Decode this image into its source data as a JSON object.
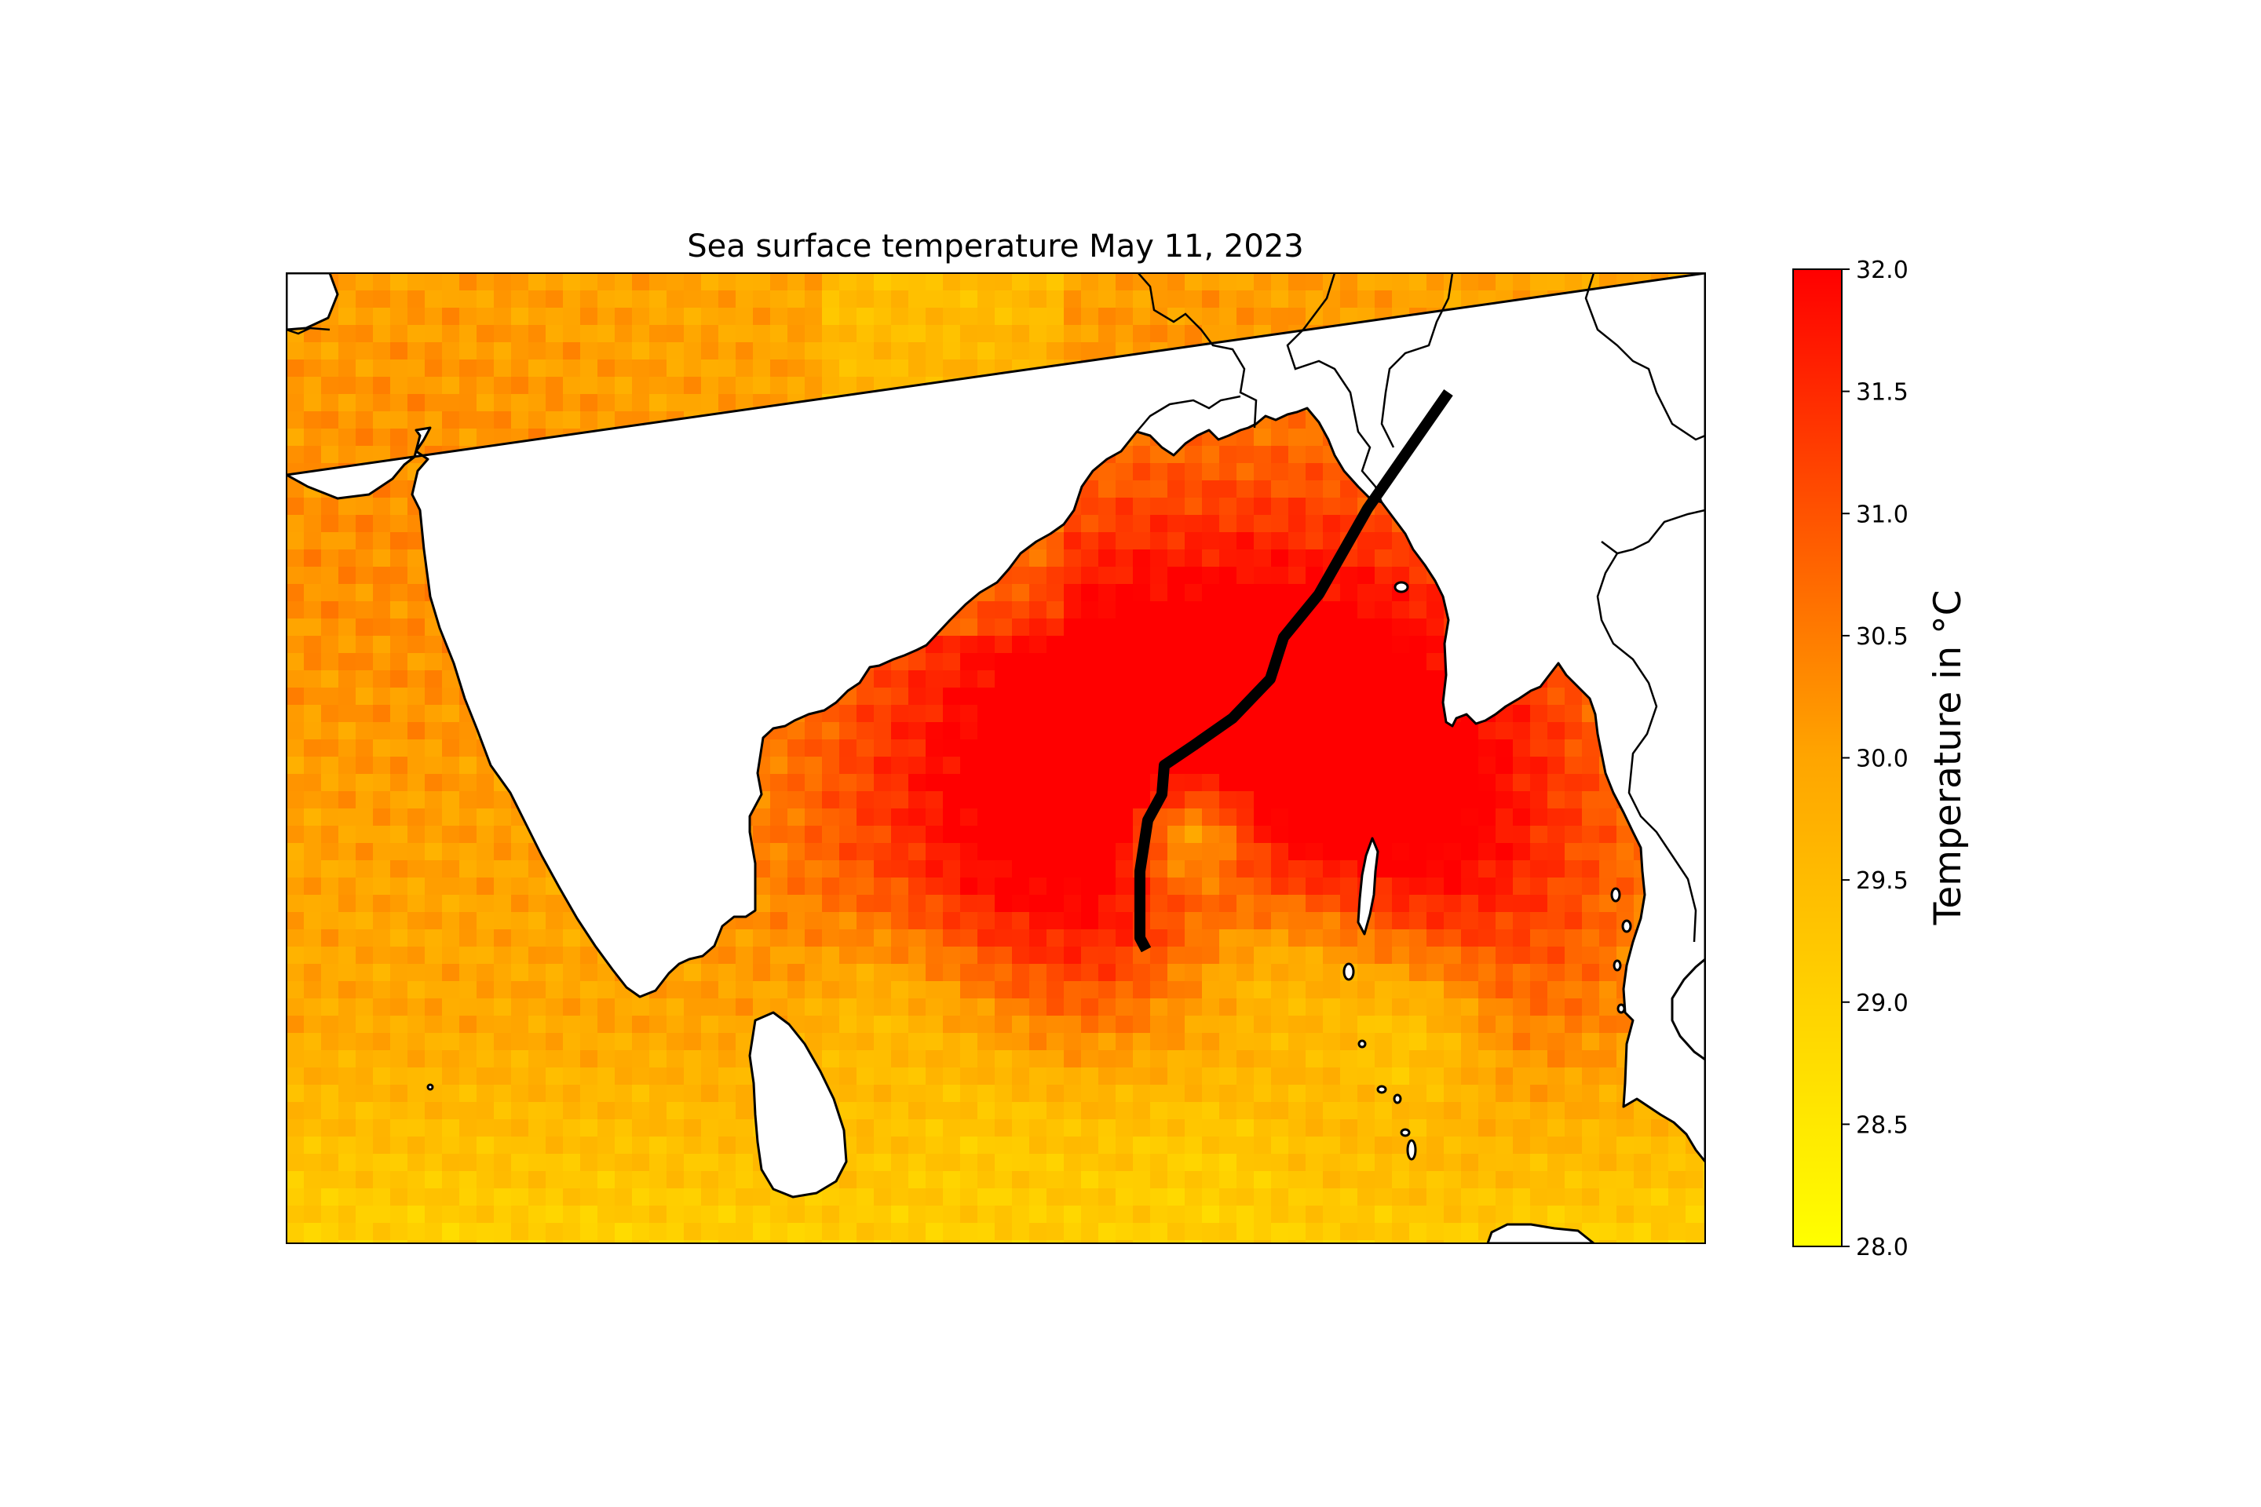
{
  "title": "Sea surface temperature May 11, 2023",
  "colorbar": {
    "label": "Temperature in °C",
    "min": 28.0,
    "max": 32.0,
    "ticks": [
      "28.0",
      "28.5",
      "29.0",
      "29.5",
      "30.0",
      "30.5",
      "31.0",
      "31.5",
      "32.0"
    ],
    "color_low": "#ffff00",
    "color_mid": "#ffa500",
    "color_high": "#ff0000"
  },
  "map": {
    "region": "Bay of Bengal and surrounding Indian Ocean",
    "projection": "PlateCarree",
    "track_color": "#000000",
    "land_color": "#ffffff"
  },
  "chart_data": {
    "type": "heatmap",
    "title": "Sea surface temperature May 11, 2023",
    "colorbar_label": "Temperature in °C",
    "value_range": [
      28.0,
      32.0
    ],
    "colormap": "autumn_r (yellow to red)",
    "features": [
      "coastlines",
      "land masked white",
      "black storm track line"
    ]
  }
}
